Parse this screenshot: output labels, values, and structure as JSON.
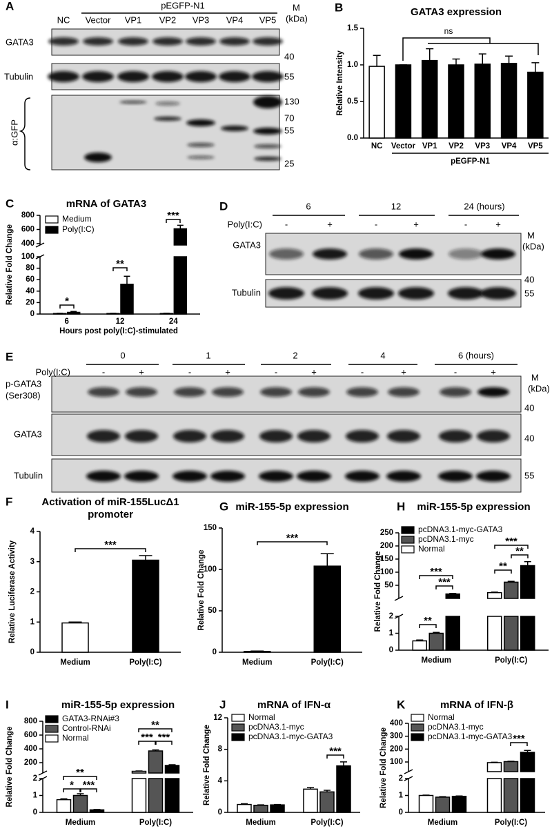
{
  "blots": {
    "A": {
      "label": "A",
      "group": "pEGFP-N1",
      "lanes": [
        "NC",
        "Vector",
        "VP1",
        "VP2",
        "VP3",
        "VP4",
        "VP5"
      ],
      "marker_title": [
        "M",
        "(kDa)"
      ],
      "rows": [
        [
          "GATA3"
        ],
        [
          "Tubulin"
        ],
        [
          "α:GFP"
        ]
      ],
      "markers": [
        40,
        55,
        130,
        70,
        55,
        25
      ]
    },
    "D": {
      "label": "D",
      "times": [
        "6",
        "12",
        "24 (hours)"
      ],
      "treatment": "Poly(I:C)",
      "signs": [
        "-",
        "+",
        "-",
        "+",
        "-",
        "+"
      ],
      "marker_title": [
        "M",
        "(kDa)"
      ],
      "rows": [
        [
          "GATA3"
        ],
        [
          "Tubulin"
        ]
      ],
      "markers": [
        40,
        55
      ]
    },
    "E": {
      "label": "E",
      "times": [
        "0",
        "1",
        "2",
        "4",
        "6 (hours)"
      ],
      "treatment": "Poly(I:C)",
      "signs": [
        "-",
        "+",
        "-",
        "+",
        "-",
        "+",
        "-",
        "+",
        "-",
        "+"
      ],
      "marker_title": [
        "M",
        "(kDa)"
      ],
      "rows": [
        [
          "p-GATA3",
          "(Ser308)"
        ],
        [
          "GATA3"
        ],
        [
          "Tubulin"
        ]
      ],
      "markers": [
        40,
        40,
        55
      ]
    }
  },
  "chart_data": [
    {
      "type": "bar",
      "label": "B",
      "title": "GATA3 expression",
      "ylabel": "Relative Intensity",
      "categories": [
        "NC",
        "Vector",
        "VP1",
        "VP2",
        "VP3",
        "VP4",
        "VP5"
      ],
      "series": [
        {
          "values": [
            0.98,
            1.0,
            1.06,
            1.0,
            1.01,
            1.02,
            0.9
          ],
          "errors": [
            0.15,
            0,
            0.16,
            0.08,
            0.14,
            0.1,
            0.13
          ],
          "colors": [
            "#ffffff",
            "#000000",
            "#000000",
            "#000000",
            "#000000",
            "#000000",
            "#000000"
          ]
        }
      ],
      "ylim": [
        0,
        1.5
      ],
      "yticks": [
        {
          "value": 0,
          "label": "0.0"
        },
        {
          "value": 0.5,
          "label": "0.5"
        },
        {
          "value": 1,
          "label": "1.0"
        },
        {
          "value": 1.5,
          "label": "1.5"
        }
      ],
      "note": "ns",
      "group_label": "pEGFP-N1"
    },
    {
      "type": "bar",
      "label": "C",
      "title": "mRNA of GATA3",
      "ylabel": "Relative Fold Change",
      "xlabel": "Hours post  poly(I:C)-stimulated",
      "categories": [
        "6",
        "12",
        "24"
      ],
      "series": [
        {
          "name": "Medium",
          "color": "#ffffff",
          "values": [
            1,
            1,
            1
          ],
          "errors": [
            0.3,
            0.3,
            0.5
          ]
        },
        {
          "name": "Poly(I:C)",
          "color": "#000000",
          "values": [
            3,
            52,
            610
          ],
          "errors": [
            1.5,
            14,
            50
          ]
        }
      ],
      "segments": [
        {
          "ylim": [
            0,
            100
          ],
          "yticks": [
            0,
            20,
            40,
            60,
            80,
            100
          ]
        },
        {
          "ylim": [
            380,
            800
          ],
          "yticks": [
            400,
            600,
            800
          ]
        }
      ],
      "annotations": [
        "*",
        "**",
        "***"
      ]
    },
    {
      "type": "bar",
      "label": "F",
      "title": [
        "Activation of miR-155LucΔ1",
        "promoter"
      ],
      "ylabel": "Relative Luciferase Activity",
      "categories": [
        "Medium",
        "Poly(I:C)"
      ],
      "series": [
        {
          "values": [
            0.97,
            3.05
          ],
          "errors": [
            0.03,
            0.15
          ],
          "colors": [
            "#ffffff",
            "#000000"
          ]
        }
      ],
      "ylim": [
        0,
        4
      ],
      "yticks": [
        0,
        1,
        2,
        3,
        4
      ],
      "annotations": [
        "***"
      ]
    },
    {
      "type": "bar",
      "label": "G",
      "title": "miR-155-5p expression",
      "ylabel": "Relative Fold Change",
      "categories": [
        "Medium",
        "Poly(I:C)"
      ],
      "series": [
        {
          "values": [
            1,
            104
          ],
          "errors": [
            0.5,
            15
          ],
          "colors": [
            "#ffffff",
            "#000000"
          ]
        }
      ],
      "ylim": [
        0,
        150
      ],
      "yticks": [
        0,
        50,
        100,
        150
      ],
      "annotations": [
        "***"
      ]
    },
    {
      "type": "bar",
      "label": "H",
      "title": "miR-155-5p expression",
      "ylabel": "Relative Fold Change",
      "categories": [
        "Medium",
        "Poly(I:C)"
      ],
      "series": [
        {
          "name": "Normal",
          "color": "#ffffff",
          "values": [
            0.55,
            22
          ],
          "errors": [
            0.05,
            2
          ]
        },
        {
          "name": "pcDNA3.1-myc",
          "color": "#555555",
          "values": [
            1.0,
            62
          ],
          "errors": [
            0.05,
            3
          ]
        },
        {
          "name": "pcDNA3.1-myc-GATA3",
          "color": "#000000",
          "values": [
            17,
            125
          ],
          "errors": [
            2,
            15
          ]
        }
      ],
      "segments": [
        {
          "ylim": [
            0,
            2
          ],
          "yticks": [
            0,
            1,
            2
          ]
        },
        {
          "ylim": [
            0,
            250
          ],
          "yticks": [
            50,
            100,
            150,
            200,
            250
          ]
        }
      ],
      "annotations": [
        "**",
        "***",
        "***",
        "**",
        "***",
        "**"
      ]
    },
    {
      "type": "bar",
      "label": "I",
      "title": "miR-155-5p expression",
      "ylabel": "Relative Fold Change",
      "categories": [
        "Medium",
        "Poly(I:C)"
      ],
      "series": [
        {
          "name": "Normal",
          "color": "#ffffff",
          "values": [
            0.75,
            75
          ],
          "errors": [
            0.05,
            5
          ]
        },
        {
          "name": "Control-RNAi",
          "color": "#555555",
          "values": [
            1.0,
            370
          ],
          "errors": [
            0.1,
            15
          ]
        },
        {
          "name": "GATA3-RNAi#3",
          "color": "#000000",
          "values": [
            0.15,
            160
          ],
          "errors": [
            0.02,
            10
          ]
        }
      ],
      "segments": [
        {
          "ylim": [
            0,
            2
          ],
          "yticks": [
            0,
            1,
            2
          ]
        },
        {
          "ylim": [
            50,
            800
          ],
          "yticks": [
            200,
            400,
            600,
            800
          ]
        }
      ],
      "annotations": [
        "**",
        "*",
        "***",
        "**",
        "***",
        "***"
      ]
    },
    {
      "type": "bar",
      "label": "J",
      "title": "mRNA of IFN-α",
      "ylabel": "Relative Fold Change",
      "categories": [
        "Medium",
        "Poly(I:C)"
      ],
      "series": [
        {
          "name": "Normal",
          "color": "#ffffff",
          "values": [
            1.0,
            2.95
          ],
          "errors": [
            0.1,
            0.2
          ]
        },
        {
          "name": "pcDNA3.1-myc",
          "color": "#555555",
          "values": [
            0.9,
            2.6
          ],
          "errors": [
            0.05,
            0.2
          ]
        },
        {
          "name": "pcDNA3.1-myc-GATA3",
          "color": "#000000",
          "values": [
            0.95,
            5.9
          ],
          "errors": [
            0.05,
            0.5
          ]
        }
      ],
      "ylim": [
        0,
        12
      ],
      "yticks": [
        0,
        4,
        8,
        12
      ],
      "annotations": [
        "***"
      ]
    },
    {
      "type": "bar",
      "label": "K",
      "title": "mRNA of IFN-β",
      "ylabel": "Relative Fold Change",
      "categories": [
        "Medium",
        "Poly(I:C)"
      ],
      "series": [
        {
          "name": "Normal",
          "color": "#ffffff",
          "values": [
            1.0,
            95
          ],
          "errors": [
            0.02,
            3
          ]
        },
        {
          "name": "pcDNA3.1-myc",
          "color": "#555555",
          "values": [
            0.9,
            103
          ],
          "errors": [
            0.03,
            3
          ]
        },
        {
          "name": "pcDNA3.1-myc-GATA3",
          "color": "#000000",
          "values": [
            0.95,
            175
          ],
          "errors": [
            0.02,
            15
          ]
        }
      ],
      "segments": [
        {
          "ylim": [
            0,
            2
          ],
          "yticks": [
            0,
            1,
            2
          ]
        },
        {
          "ylim": [
            25,
            400
          ],
          "yticks": [
            100,
            200,
            300,
            400
          ]
        }
      ],
      "annotations": [
        "***"
      ]
    }
  ]
}
